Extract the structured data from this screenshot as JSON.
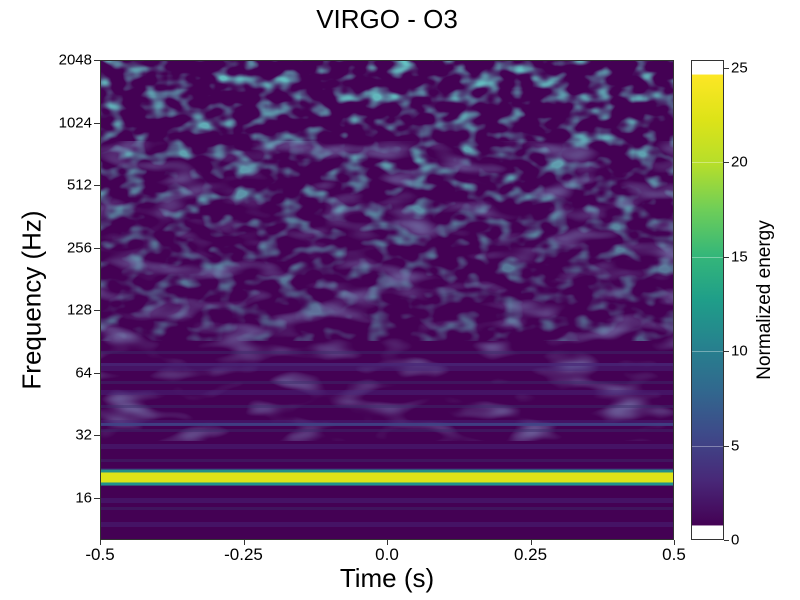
{
  "chart_data": {
    "type": "heatmap",
    "title": "VIRGO - O3",
    "xlabel": "Time (s)",
    "ylabel": "Frequency (Hz)",
    "xlim": [
      -0.5,
      0.5
    ],
    "ylim": [
      10,
      2048
    ],
    "yscale": "log2",
    "xticks": [
      -0.5,
      -0.25,
      0.0,
      0.25,
      0.5
    ],
    "xtick_labels": [
      "-0.5",
      "-0.25",
      "0.0",
      "0.25",
      "0.5"
    ],
    "yticks": [
      16,
      32,
      64,
      128,
      256,
      512,
      1024,
      2048
    ],
    "ytick_labels": [
      "16",
      "32",
      "64",
      "128",
      "256",
      "512",
      "1024",
      "2048"
    ],
    "colormap": "viridis",
    "colorbar": {
      "label": "Normalized energy",
      "range": [
        0,
        25.4
      ],
      "ticks": [
        0,
        5,
        10,
        15,
        20,
        25
      ],
      "tick_labels": [
        "0",
        "5",
        "10",
        "15",
        "20",
        "25"
      ]
    },
    "features": [
      {
        "name": "strong narrow line",
        "frequency": 20,
        "time_range": [
          -0.5,
          0.5
        ],
        "energy": 25
      },
      {
        "name": "weak line",
        "frequency": 36,
        "time_range": [
          -0.5,
          0.5
        ],
        "energy": 6
      },
      {
        "name": "weak line",
        "frequency": 70,
        "time_range": [
          -0.5,
          0.5
        ],
        "energy": 4
      },
      {
        "name": "background noise",
        "frequency_range": [
          10,
          2048
        ],
        "energy_range": [
          0,
          8
        ]
      }
    ]
  }
}
